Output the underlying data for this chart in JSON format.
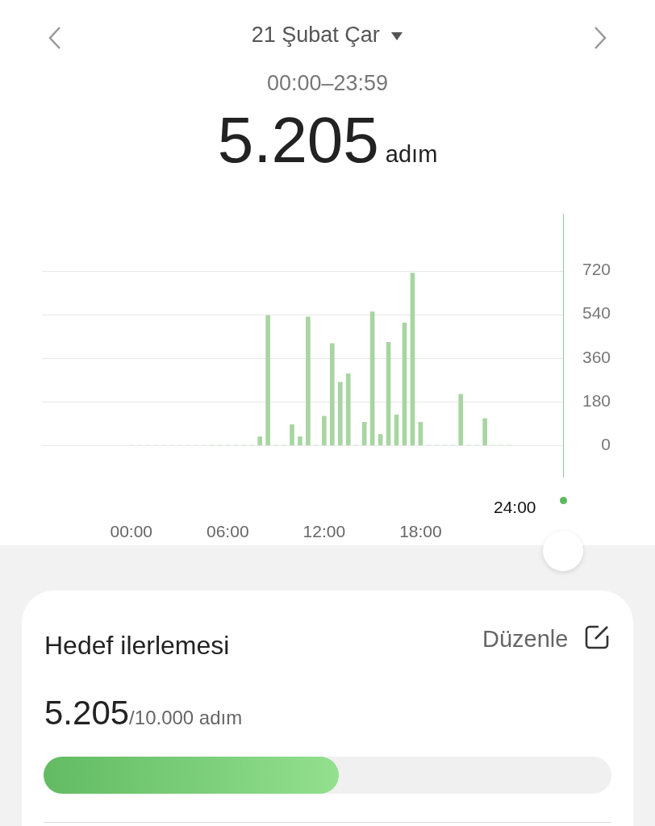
{
  "chart_data": {
    "type": "bar",
    "title": "21 Şubat Çar",
    "subtitle": "00:00–23:59",
    "annotations": [
      "5.205",
      "adım",
      "24:00",
      "Hedef ilerlemesi",
      "Düzenle",
      "5.205",
      "/10.000 adım"
    ],
    "categories": [
      "00:00",
      null,
      null,
      null,
      null,
      null,
      null,
      null,
      null,
      null,
      null,
      null,
      "06:00",
      null,
      null,
      null,
      null,
      null,
      null,
      null,
      null,
      null,
      null,
      null,
      "12:00",
      null,
      null,
      null,
      null,
      null,
      null,
      null,
      null,
      null,
      null,
      null,
      "18:00",
      null,
      null,
      null,
      null,
      null,
      null,
      null,
      null,
      null,
      null,
      null
    ],
    "values": [
      0,
      0,
      0,
      0,
      0,
      0,
      0,
      0,
      0,
      0,
      0,
      0,
      0,
      0,
      0,
      0,
      35,
      535,
      0,
      0,
      85,
      35,
      530,
      0,
      120,
      420,
      260,
      295,
      0,
      95,
      550,
      45,
      425,
      125,
      505,
      710,
      95,
      0,
      0,
      0,
      0,
      210,
      0,
      0,
      110,
      0,
      0,
      0
    ],
    "color": "#a8d5a2",
    "ylim": [
      0,
      720
    ],
    "yticks": [
      0,
      180,
      360,
      540,
      720
    ],
    "grid": "y"
  }
}
